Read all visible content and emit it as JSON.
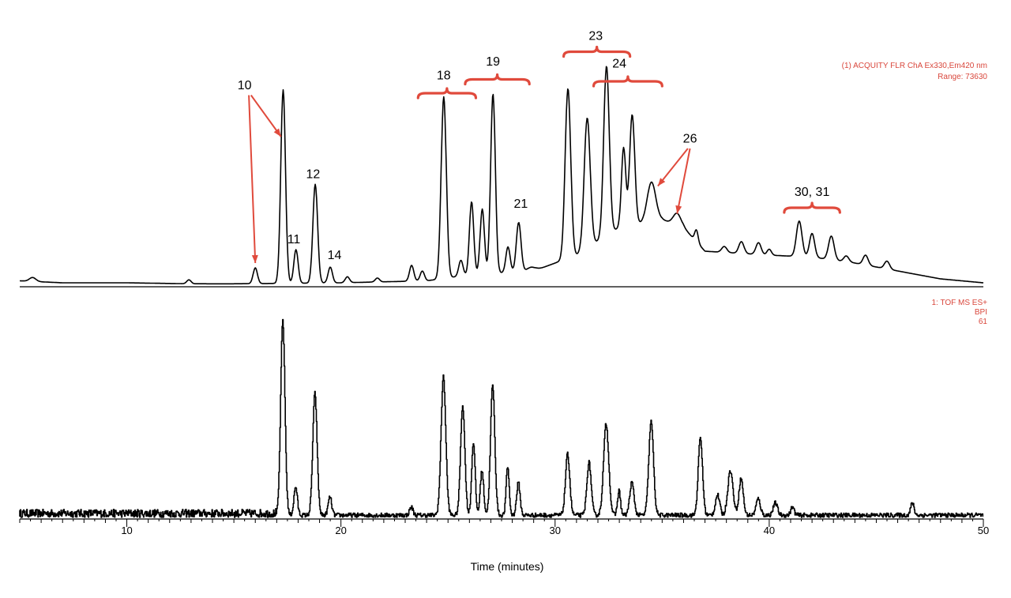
{
  "colors": {
    "trace": "#000000",
    "annotation": "#e04a3c",
    "info": "#d9473c"
  },
  "chart_data": [
    {
      "type": "line",
      "name": "fluorescence",
      "info_lines": [
        "(1) ACQUITY FLR ChA Ex330,Em420 nm",
        "Range: 73630"
      ],
      "xlim": [
        5,
        50
      ],
      "ylim": [
        0,
        100
      ],
      "baseline": [
        [
          5,
          3
        ],
        [
          7,
          2
        ],
        [
          10,
          2
        ],
        [
          13,
          1.5
        ],
        [
          15,
          1.5
        ],
        [
          20,
          2
        ],
        [
          24,
          3
        ],
        [
          26,
          6
        ],
        [
          29,
          8
        ],
        [
          31,
          16
        ],
        [
          33,
          30
        ],
        [
          35,
          34
        ],
        [
          36,
          30
        ],
        [
          37,
          18
        ],
        [
          40,
          16
        ],
        [
          42,
          15
        ],
        [
          44,
          12
        ],
        [
          46,
          8
        ],
        [
          48,
          4
        ],
        [
          50,
          2
        ]
      ],
      "peaks": [
        {
          "x": 5.6,
          "h": 2,
          "w": 0.15
        },
        {
          "x": 12.9,
          "h": 2,
          "w": 0.1
        },
        {
          "x": 16.0,
          "h": 8,
          "w": 0.1
        },
        {
          "x": 17.3,
          "h": 98,
          "w": 0.11
        },
        {
          "x": 17.9,
          "h": 17,
          "w": 0.1
        },
        {
          "x": 18.8,
          "h": 50,
          "w": 0.11
        },
        {
          "x": 19.5,
          "h": 8,
          "w": 0.1
        },
        {
          "x": 20.3,
          "h": 3,
          "w": 0.1
        },
        {
          "x": 21.7,
          "h": 2,
          "w": 0.1
        },
        {
          "x": 23.3,
          "h": 8,
          "w": 0.1
        },
        {
          "x": 23.8,
          "h": 5,
          "w": 0.1
        },
        {
          "x": 24.8,
          "h": 92,
          "w": 0.12
        },
        {
          "x": 25.6,
          "h": 8,
          "w": 0.1
        },
        {
          "x": 26.1,
          "h": 37,
          "w": 0.1
        },
        {
          "x": 26.6,
          "h": 33,
          "w": 0.1
        },
        {
          "x": 27.1,
          "h": 91,
          "w": 0.11
        },
        {
          "x": 27.8,
          "h": 13,
          "w": 0.1
        },
        {
          "x": 28.3,
          "h": 25,
          "w": 0.11
        },
        {
          "x": 28.9,
          "h": 2,
          "w": 0.2
        },
        {
          "x": 30.6,
          "h": 86,
          "w": 0.13
        },
        {
          "x": 31.5,
          "h": 66,
          "w": 0.14
        },
        {
          "x": 32.4,
          "h": 86,
          "w": 0.13
        },
        {
          "x": 33.2,
          "h": 40,
          "w": 0.1
        },
        {
          "x": 33.6,
          "h": 56,
          "w": 0.12
        },
        {
          "x": 34.5,
          "h": 20,
          "w": 0.2
        },
        {
          "x": 35.7,
          "h": 6,
          "w": 0.18
        },
        {
          "x": 36.6,
          "h": 6,
          "w": 0.08
        },
        {
          "x": 37.9,
          "h": 3,
          "w": 0.12
        },
        {
          "x": 38.7,
          "h": 6,
          "w": 0.12
        },
        {
          "x": 39.5,
          "h": 6,
          "w": 0.12
        },
        {
          "x": 40.0,
          "h": 3,
          "w": 0.1
        },
        {
          "x": 41.4,
          "h": 18,
          "w": 0.13
        },
        {
          "x": 42.0,
          "h": 12,
          "w": 0.12
        },
        {
          "x": 42.9,
          "h": 12,
          "w": 0.13
        },
        {
          "x": 43.6,
          "h": 3,
          "w": 0.12
        },
        {
          "x": 44.5,
          "h": 5,
          "w": 0.12
        },
        {
          "x": 45.5,
          "h": 4,
          "w": 0.12
        }
      ],
      "annotations": [
        {
          "label": "10",
          "x": 15.5,
          "y": 100
        },
        {
          "label": "11",
          "x": 17.8,
          "y": 22
        },
        {
          "label": "12",
          "x": 18.7,
          "y": 55
        },
        {
          "label": "14",
          "x": 19.7,
          "y": 14
        },
        {
          "label": "18",
          "x": 24.8,
          "y": 105
        },
        {
          "label": "19",
          "x": 27.1,
          "y": 112
        },
        {
          "label": "21",
          "x": 28.4,
          "y": 40
        },
        {
          "label": "23",
          "x": 31.9,
          "y": 125
        },
        {
          "label": "24",
          "x": 33.0,
          "y": 111
        },
        {
          "label": "26",
          "x": 36.3,
          "y": 73
        },
        {
          "label": "30, 31",
          "x": 42.0,
          "y": 46
        }
      ],
      "braces": [
        {
          "x0": 23.6,
          "x1": 26.3,
          "y": 98
        },
        {
          "x0": 25.8,
          "x1": 28.8,
          "y": 105
        },
        {
          "x0": 30.4,
          "x1": 33.5,
          "y": 119
        },
        {
          "x0": 31.8,
          "x1": 35.0,
          "y": 104
        },
        {
          "x0": 40.7,
          "x1": 43.3,
          "y": 40
        }
      ],
      "arrows": [
        {
          "from": [
            15.7,
            97
          ],
          "to": [
            16.0,
            12
          ]
        },
        {
          "from": [
            15.8,
            97
          ],
          "to": [
            17.2,
            76
          ]
        },
        {
          "from": [
            36.2,
            70
          ],
          "to": [
            34.8,
            51
          ]
        },
        {
          "from": [
            36.3,
            70
          ],
          "to": [
            35.7,
            37
          ]
        }
      ]
    },
    {
      "type": "line",
      "name": "mass-spec",
      "info_lines": [
        "1: TOF MS ES+",
        "BPI",
        "61"
      ],
      "xlim": [
        5,
        50
      ],
      "ylim": [
        0,
        100
      ],
      "noise": 4,
      "noise_end": 17,
      "peaks": [
        {
          "x": 17.3,
          "h": 96,
          "w": 0.1
        },
        {
          "x": 17.9,
          "h": 14,
          "w": 0.08
        },
        {
          "x": 18.8,
          "h": 60,
          "w": 0.1
        },
        {
          "x": 19.5,
          "h": 9,
          "w": 0.08
        },
        {
          "x": 23.3,
          "h": 4,
          "w": 0.08
        },
        {
          "x": 24.8,
          "h": 68,
          "w": 0.11
        },
        {
          "x": 25.7,
          "h": 54,
          "w": 0.1
        },
        {
          "x": 26.2,
          "h": 36,
          "w": 0.08
        },
        {
          "x": 26.6,
          "h": 22,
          "w": 0.08
        },
        {
          "x": 27.1,
          "h": 64,
          "w": 0.1
        },
        {
          "x": 27.8,
          "h": 24,
          "w": 0.07
        },
        {
          "x": 28.3,
          "h": 16,
          "w": 0.08
        },
        {
          "x": 30.6,
          "h": 30,
          "w": 0.1
        },
        {
          "x": 31.6,
          "h": 26,
          "w": 0.1
        },
        {
          "x": 32.4,
          "h": 45,
          "w": 0.12
        },
        {
          "x": 33.0,
          "h": 12,
          "w": 0.07
        },
        {
          "x": 33.6,
          "h": 16,
          "w": 0.1
        },
        {
          "x": 34.5,
          "h": 46,
          "w": 0.11
        },
        {
          "x": 36.8,
          "h": 38,
          "w": 0.1
        },
        {
          "x": 37.6,
          "h": 10,
          "w": 0.1
        },
        {
          "x": 38.2,
          "h": 22,
          "w": 0.12
        },
        {
          "x": 38.7,
          "h": 18,
          "w": 0.1
        },
        {
          "x": 39.5,
          "h": 8,
          "w": 0.1
        },
        {
          "x": 40.3,
          "h": 6,
          "w": 0.1
        },
        {
          "x": 41.1,
          "h": 4,
          "w": 0.08
        },
        {
          "x": 46.7,
          "h": 6,
          "w": 0.08
        }
      ]
    }
  ],
  "x_axis": {
    "label": "Time (minutes)",
    "min": 5,
    "max": 50,
    "major_ticks": [
      10,
      20,
      30,
      40,
      50
    ],
    "minor_step": 0.5
  }
}
